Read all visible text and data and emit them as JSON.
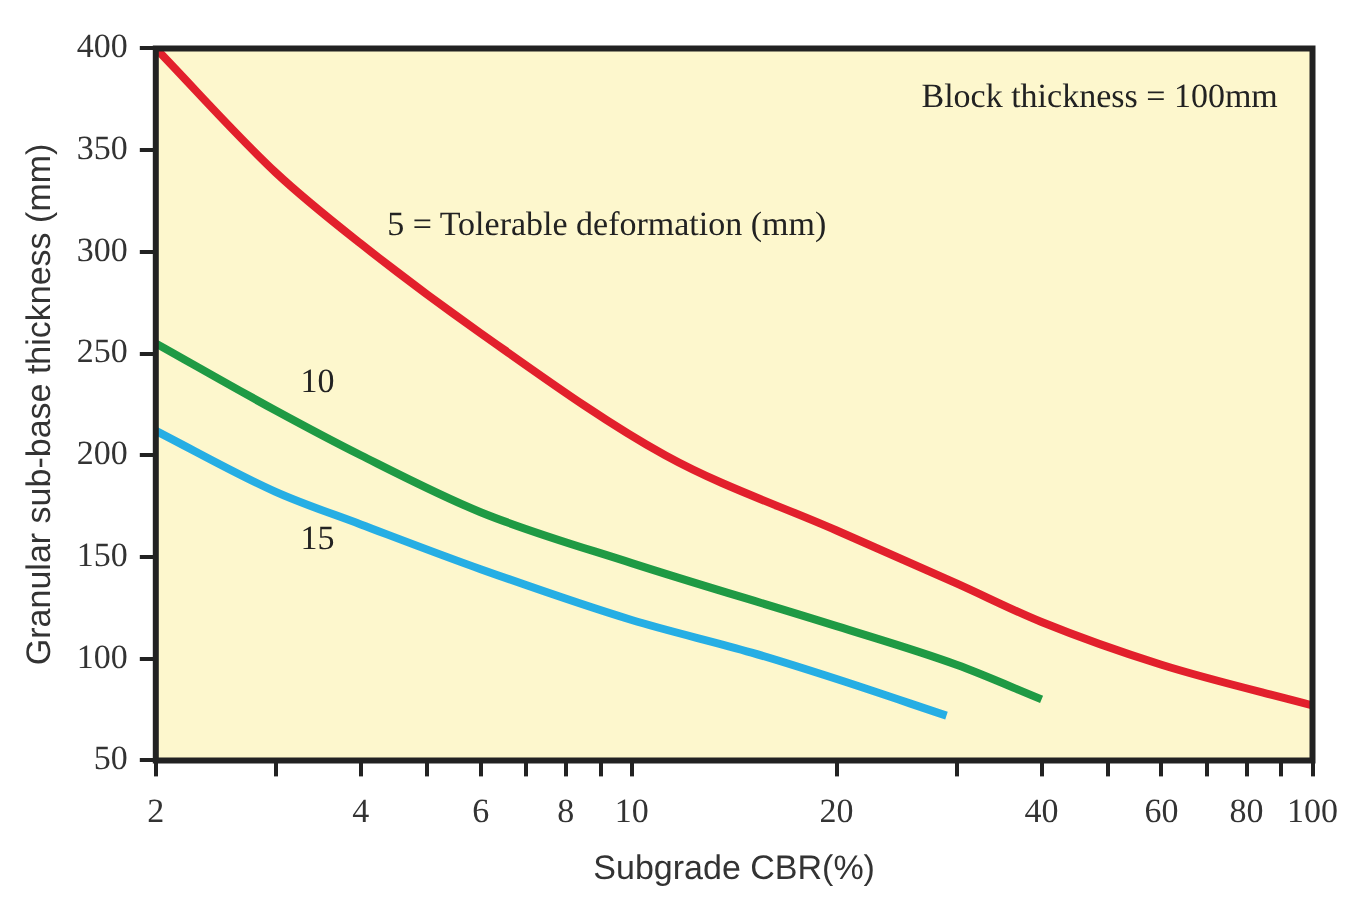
{
  "chart_data": {
    "type": "line",
    "xlabel": "Subgrade CBR(%)",
    "ylabel": "Granular sub-base thickness (mm)",
    "log": "x",
    "marker": "none",
    "xlim": [
      2,
      100
    ],
    "ylim": [
      50,
      400
    ],
    "xticks": [
      2,
      {
        "value": 3,
        "label": null
      },
      4,
      {
        "value": 5,
        "label": null
      },
      6,
      {
        "value": 7,
        "label": null
      },
      8,
      {
        "value": 9,
        "label": null
      },
      10,
      20,
      {
        "value": 30,
        "label": null
      },
      40,
      {
        "value": 50,
        "label": null
      },
      60,
      {
        "value": 70,
        "label": null
      },
      80,
      {
        "value": 90,
        "label": null
      },
      100
    ],
    "yticks": [
      50,
      100,
      150,
      200,
      250,
      300,
      350,
      400
    ],
    "series": [
      {
        "color": "#e2202c",
        "x": [
          2,
          3,
          4,
          6,
          11.2,
          20,
          30,
          40,
          60,
          100
        ],
        "values": [
          400,
          339,
          304,
          260,
          200,
          163,
          137,
          118,
          97,
          77
        ]
      },
      {
        "color": "#1f9a44",
        "x": [
          2,
          3,
          4,
          6,
          10,
          20,
          30,
          40
        ],
        "values": [
          255,
          222,
          200,
          172,
          147,
          116,
          97,
          80
        ]
      },
      {
        "color": "#26aee4",
        "x": [
          2,
          3,
          4,
          6,
          10,
          15,
          20,
          29
        ],
        "values": [
          212,
          182,
          166,
          144,
          119,
          103,
          90,
          72
        ]
      }
    ],
    "annotations": [
      "Block thickness = 100mm",
      "5 = Tolerable deformation (mm)",
      "10",
      "15"
    ]
  }
}
